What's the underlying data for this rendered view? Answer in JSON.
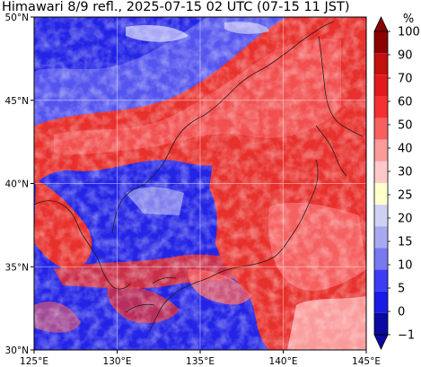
{
  "header": {
    "title": "Himawari 8/9 refl., 2025-07-15 02 UTC (07-15 11 JST)"
  },
  "map": {
    "lon_range": [
      125,
      145
    ],
    "lat_range": [
      30,
      50
    ],
    "lon_ticks": [
      {
        "value": 125,
        "label": "125°E"
      },
      {
        "value": 130,
        "label": "130°E"
      },
      {
        "value": 135,
        "label": "135°E"
      },
      {
        "value": 140,
        "label": "140°E"
      },
      {
        "value": 145,
        "label": "145°E"
      }
    ],
    "lat_ticks": [
      {
        "value": 50,
        "label": "50°N"
      },
      {
        "value": 45,
        "label": "45°N"
      },
      {
        "value": 40,
        "label": "40°N"
      },
      {
        "value": 35,
        "label": "35°N"
      },
      {
        "value": 30,
        "label": "30°N"
      }
    ],
    "gridlines": true
  },
  "colorbar": {
    "unit": "%",
    "extend": "both",
    "levels": [
      {
        "label": "100",
        "value": 100
      },
      {
        "label": "90",
        "value": 90
      },
      {
        "label": "70",
        "value": 70
      },
      {
        "label": "60",
        "value": 60
      },
      {
        "label": "50",
        "value": 50
      },
      {
        "label": "40",
        "value": 40
      },
      {
        "label": "30",
        "value": 30
      },
      {
        "label": "25",
        "value": 25
      },
      {
        "label": "20",
        "value": 20
      },
      {
        "label": "15",
        "value": 15
      },
      {
        "label": "10",
        "value": 10
      },
      {
        "label": "5",
        "value": 5
      },
      {
        "label": "0",
        "value": 0
      },
      {
        "label": "−1",
        "value": -1
      }
    ],
    "colors_top_to_bottom": [
      "#8b0000",
      "#c40f0f",
      "#e31a1c",
      "#f53030",
      "#f86060",
      "#fa9a9a",
      "#fcc8c8",
      "#ffffcc",
      "#d0d0f5",
      "#a8a8f0",
      "#7878f0",
      "#3c3cf5",
      "#1a1ae6",
      "#0a0aa0"
    ]
  }
}
